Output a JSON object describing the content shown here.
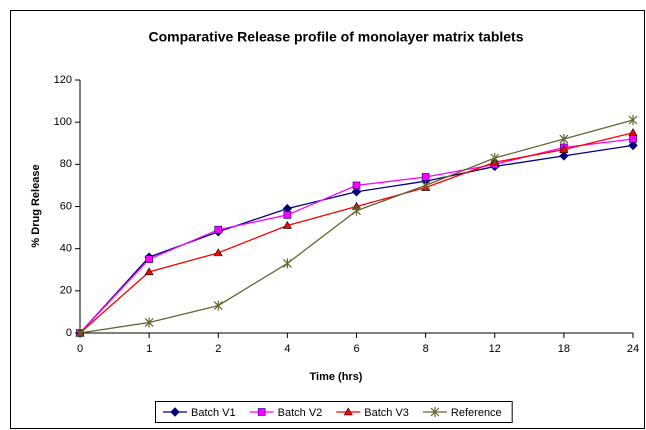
{
  "chart_data": {
    "type": "line",
    "title": "Comparative Release profile of monolayer matrix tablets",
    "x_label": "Time (hrs)",
    "y_label": "% Drug Release",
    "categories": [
      "0",
      "1",
      "2",
      "4",
      "6",
      "8",
      "12",
      "18",
      "24"
    ],
    "series": [
      {
        "name": "Batch V1",
        "color": "#000080",
        "marker": "diamond",
        "values": [
          0,
          36,
          48,
          59,
          67,
          72,
          79,
          84,
          89
        ]
      },
      {
        "name": "Batch V2",
        "color": "#ff00ff",
        "marker": "square",
        "values": [
          0,
          35,
          49,
          56,
          70,
          74,
          80,
          88,
          92
        ]
      },
      {
        "name": "Batch V3",
        "color": "#ff0000",
        "marker": "triangle",
        "values": [
          0,
          29,
          38,
          51,
          60,
          69,
          81,
          87,
          95
        ]
      },
      {
        "name": "Reference",
        "color": "#666633",
        "marker": "asterisk",
        "values": [
          0,
          5,
          13,
          33,
          58,
          70,
          83,
          92,
          101
        ]
      }
    ],
    "ylim": [
      0,
      120
    ],
    "yticks": [
      0,
      20,
      40,
      60,
      80,
      100,
      120
    ],
    "grid": false,
    "legend": "bottom"
  }
}
